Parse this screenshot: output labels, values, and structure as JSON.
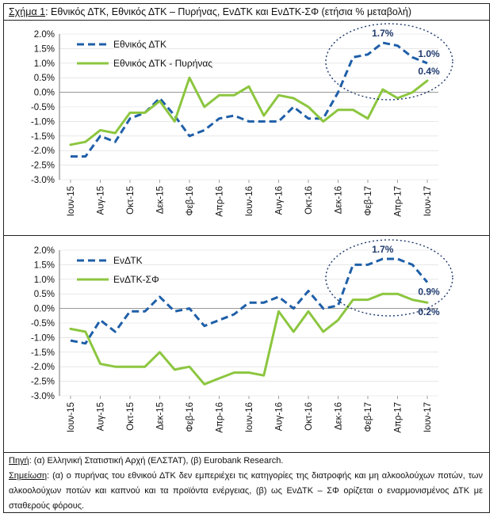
{
  "figure": {
    "title_label": "Σχήμα 1",
    "title_text": ": Εθνικός ΔΤΚ, Εθνικός ΔΤΚ – Πυρήνας, ΕνΔΤΚ και ΕνΔΤΚ-ΣΦ (ετήσια % μεταβολή)"
  },
  "colors": {
    "blue": "#1f5fa8",
    "green": "#8cc63f",
    "annotation": "#1f3a6e",
    "grid": "#d9d9d9"
  },
  "chart_data": [
    {
      "type": "line",
      "title": "",
      "categories": [
        "Ιουν-15",
        "Ιουλ-15",
        "Αυγ-15",
        "Σεπ-15",
        "Οκτ-15",
        "Νοε-15",
        "Δεκ-15",
        "Ιαν-16",
        "Φεβ-16",
        "Μαρ-16",
        "Απρ-16",
        "Μαϊ-16",
        "Ιουν-16",
        "Ιουλ-16",
        "Αυγ-16",
        "Σεπ-16",
        "Οκτ-16",
        "Νοε-16",
        "Δεκ-16",
        "Ιαν-17",
        "Φεβ-17",
        "Μαρ-17",
        "Απρ-17",
        "Μαϊ-17",
        "Ιουν-17"
      ],
      "tick_labels": [
        "Ιουν-15",
        "Αυγ-15",
        "Οκτ-15",
        "Δεκ-15",
        "Φεβ-16",
        "Απρ-16",
        "Ιουν-16",
        "Αυγ-16",
        "Οκτ-16",
        "Δεκ-16",
        "Φεβ-17",
        "Απρ-17",
        "Ιουν-17"
      ],
      "yticks": [
        "2.0%",
        "1.5%",
        "1.0%",
        "0.5%",
        "0.0%",
        "-0.5%",
        "-1.0%",
        "-1.5%",
        "-2.0%",
        "-2.5%",
        "-3.0%"
      ],
      "ylim": [
        -3.0,
        2.0
      ],
      "series": [
        {
          "name": "Εθνικός ΔΤΚ",
          "style": "dashed",
          "color": "#1f5fa8",
          "values": [
            -2.2,
            -2.2,
            -1.5,
            -1.7,
            -0.9,
            -0.7,
            -0.2,
            -0.8,
            -1.5,
            -1.3,
            -0.9,
            -0.8,
            -1.0,
            -1.0,
            -1.0,
            -0.5,
            -0.9,
            -0.9,
            0.0,
            1.2,
            1.3,
            1.7,
            1.6,
            1.2,
            1.0
          ]
        },
        {
          "name": "Εθνικός ΔΤΚ - Πυρήνας",
          "style": "solid",
          "color": "#8cc63f",
          "values": [
            -1.8,
            -1.7,
            -1.3,
            -1.4,
            -0.7,
            -0.7,
            -0.3,
            -1.0,
            0.5,
            -0.5,
            -0.1,
            -0.1,
            0.2,
            -0.8,
            -0.1,
            -0.2,
            -0.5,
            -1.0,
            -0.6,
            -0.6,
            -0.9,
            0.1,
            -0.2,
            0.0,
            0.4
          ]
        }
      ],
      "annotations": [
        {
          "text": "1.7%",
          "index": 21,
          "value": 1.7,
          "position": "above"
        },
        {
          "text": "1.0%",
          "index": 24,
          "value": 1.0,
          "position": "above"
        },
        {
          "text": "0.4%",
          "index": 24,
          "value": 0.4,
          "position": "above"
        }
      ]
    },
    {
      "type": "line",
      "title": "",
      "categories": [
        "Ιουν-15",
        "Ιουλ-15",
        "Αυγ-15",
        "Σεπ-15",
        "Οκτ-15",
        "Νοε-15",
        "Δεκ-15",
        "Ιαν-16",
        "Φεβ-16",
        "Μαρ-16",
        "Απρ-16",
        "Μαϊ-16",
        "Ιουν-16",
        "Ιουλ-16",
        "Αυγ-16",
        "Σεπ-16",
        "Οκτ-16",
        "Νοε-16",
        "Δεκ-16",
        "Ιαν-17",
        "Φεβ-17",
        "Μαρ-17",
        "Απρ-17",
        "Μαϊ-17",
        "Ιουν-17"
      ],
      "tick_labels": [
        "Ιουν-15",
        "Αυγ-15",
        "Οκτ-15",
        "Δεκ-15",
        "Φεβ-16",
        "Απρ-16",
        "Ιουν-16",
        "Αυγ-16",
        "Οκτ-16",
        "Δεκ-16",
        "Φεβ-17",
        "Απρ-17",
        "Ιουν-17"
      ],
      "yticks": [
        "2.0%",
        "1.5%",
        "1.0%",
        "0.5%",
        "0.0%",
        "-0.5%",
        "-1.0%",
        "-1.5%",
        "-2.0%",
        "-2.5%",
        "-3.0%"
      ],
      "ylim": [
        -3.0,
        2.0
      ],
      "series": [
        {
          "name": "ΕνΔΤΚ",
          "style": "dashed",
          "color": "#1f5fa8",
          "values": [
            -1.1,
            -1.2,
            -0.4,
            -0.8,
            -0.1,
            -0.1,
            0.4,
            -0.1,
            0.0,
            -0.6,
            -0.4,
            -0.2,
            0.2,
            0.2,
            0.4,
            0.0,
            0.6,
            0.0,
            0.1,
            1.5,
            1.5,
            1.7,
            1.7,
            1.5,
            0.9
          ]
        },
        {
          "name": "ΕνΔΤΚ-ΣΦ",
          "style": "solid",
          "color": "#8cc63f",
          "values": [
            -0.7,
            -0.8,
            -1.9,
            -2.0,
            -2.0,
            -2.0,
            -1.5,
            -2.1,
            -2.0,
            -2.6,
            -2.4,
            -2.2,
            -2.2,
            -2.3,
            -0.1,
            -0.8,
            -0.1,
            -0.8,
            -0.4,
            0.3,
            0.3,
            0.5,
            0.5,
            0.3,
            0.2
          ]
        }
      ],
      "annotations": [
        {
          "text": "1.7%",
          "index": 21,
          "value": 1.7,
          "position": "above"
        },
        {
          "text": "0.9%",
          "index": 24,
          "value": 0.9,
          "position": "below"
        },
        {
          "text": "0.2%",
          "index": 24,
          "value": 0.2,
          "position": "below"
        }
      ]
    }
  ],
  "footnote": {
    "source_label": "Πηγή",
    "source_text": ": (α) Ελληνική Στατιστική Αρχή (ΕΛΣΤΑΤ), (β) Eurobank Research.",
    "notes_label": "Σημείωση",
    "notes_text": ": (α) ο πυρήνας του εθνικού ΔΤΚ δεν εμπεριέχει τις κατηγορίες της διατροφής και μη αλκοολούχων ποτών, των αλκοολούχων ποτών και καπνού και τα προϊόντα ενέργειας, (β) ως ΕνΔΤΚ – ΣΦ ορίζεται ο εναρμονισμένος ΔΤΚ με σταθερούς φόρους."
  }
}
